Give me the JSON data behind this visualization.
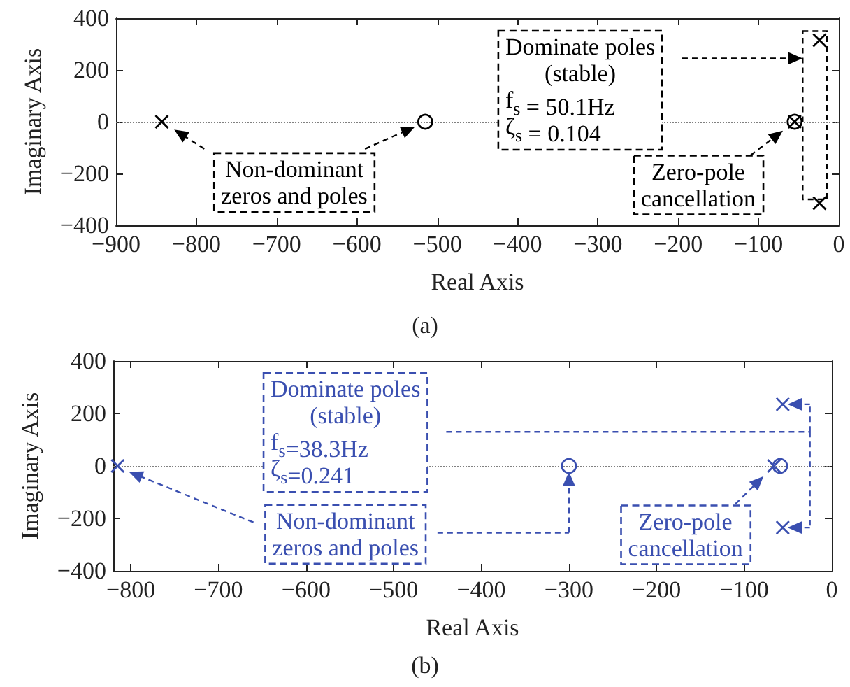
{
  "chart_data": [
    {
      "type": "scatter",
      "title": "(a)",
      "xlabel": "Real Axis",
      "ylabel": "Imaginary Axis",
      "xlim": [
        -900,
        0
      ],
      "xticks": [
        -900,
        -800,
        -700,
        -600,
        -500,
        -400,
        -300,
        -200,
        -100,
        0
      ],
      "ylim": [
        -400,
        400
      ],
      "yticks": [
        -400,
        -200,
        0,
        200,
        400
      ],
      "grid": false,
      "series": [
        {
          "marker": "cross",
          "color": "#000000",
          "x": [
            -843,
            -55,
            -24,
            -24
          ],
          "values": [
            0,
            0,
            315,
            -315
          ]
        },
        {
          "marker": "circle",
          "color": "#000000",
          "x": [
            -515,
            -55
          ],
          "values": [
            0,
            0
          ]
        }
      ],
      "ref_lines": [
        {
          "axis": "y",
          "value": 0,
          "line_style": "dotted",
          "color": "#808080"
        }
      ],
      "annotations": [
        {
          "text": "Non-dominant\nzeros and poles",
          "x": -843,
          "y": 0
        },
        "Dominate poles\n(stable)\nf$_{s}$ = 50.1Hz\nζ$_{s}$ = 0.104",
        {
          "text": "Zero-pole\ncancellation",
          "x": -55,
          "y": 0
        }
      ]
    },
    {
      "type": "scatter",
      "title": "(b)",
      "xlabel": "Real Axis",
      "ylabel": "Imaginary Axis",
      "xlim": [
        -820,
        0
      ],
      "xticks": [
        -800,
        -700,
        -600,
        -500,
        -400,
        -300,
        -200,
        -100,
        0
      ],
      "ylim": [
        -400,
        400
      ],
      "yticks": [
        -400,
        -200,
        0,
        200,
        400
      ],
      "grid": false,
      "series": [
        {
          "marker": "cross",
          "color": "#3a4fb0",
          "x": [
            -815,
            -66,
            -56,
            -56
          ],
          "values": [
            0,
            0,
            235,
            -235
          ]
        },
        {
          "marker": "circle",
          "color": "#3a4fb0",
          "x": [
            -300,
            -59
          ],
          "values": [
            0,
            0
          ]
        }
      ],
      "ref_lines": [
        {
          "axis": "y",
          "value": 0,
          "line_style": "dotted",
          "color": "#808080"
        }
      ],
      "annotations": [
        "Dominate poles\n(stable)\nf$_{s}$=38.3Hz\nζ$_{s}$=0.241",
        "Non-dominant\nzeros and poles",
        {
          "text": "Zero-pole\ncancellation",
          "x": -66,
          "y": 0
        }
      ]
    }
  ]
}
